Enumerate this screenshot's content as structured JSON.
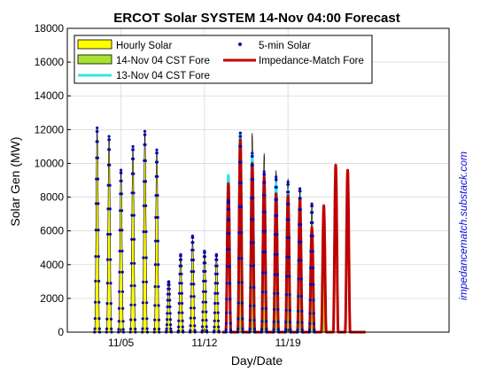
{
  "chart_data": {
    "type": "area",
    "title": "ERCOT Solar SYSTEM  14-Nov 04:00 Forecast",
    "xlabel": "Day/Date",
    "ylabel": "Solar Gen (MW)",
    "watermark": "impedancematch.substack.com",
    "ylim": [
      0,
      18000
    ],
    "xlim": [
      0,
      32
    ],
    "yticks": [
      0,
      2000,
      4000,
      6000,
      8000,
      10000,
      12000,
      14000,
      16000,
      18000
    ],
    "xticks": [
      {
        "day": 4.5,
        "label": "11/05"
      },
      {
        "day": 11.5,
        "label": "11/12"
      },
      {
        "day": 18.5,
        "label": "11/19"
      }
    ],
    "grid": true,
    "legend_placement": "top",
    "series": [
      {
        "name": "Hourly Solar",
        "style": "yellow-fill",
        "color": "#ffff00",
        "days": [
          2,
          3,
          4,
          5,
          6,
          7,
          8,
          9,
          10,
          11,
          12,
          13
        ],
        "peaks": [
          12100,
          11600,
          9600,
          11000,
          11900,
          10800,
          3000,
          4600,
          5500,
          4800,
          4600,
          0
        ]
      },
      {
        "name": "5-min Solar",
        "style": "dots",
        "color": "#0a0aaa",
        "days": [
          2,
          3,
          4,
          5,
          6,
          7,
          8,
          9,
          10,
          11,
          12,
          13,
          14,
          15,
          16,
          17,
          18,
          19,
          20,
          21
        ],
        "peaks": [
          12100,
          11600,
          9600,
          11000,
          11900,
          10800,
          3000,
          4600,
          5700,
          4800,
          4600,
          7800,
          11800,
          10600,
          9500,
          9200,
          8900,
          8500,
          7600,
          0
        ]
      },
      {
        "name": "14-Nov 04 CST Fore",
        "style": "green-fill",
        "color": "#a6e22e",
        "days": [
          14,
          15,
          16,
          17,
          18,
          19,
          20,
          21
        ],
        "peaks": [
          7700,
          11800,
          10600,
          9600,
          9100,
          8500,
          7600,
          6200
        ]
      },
      {
        "name": "13-Nov 04 CST Fore",
        "style": "cyan-line",
        "color": "#33e6e6",
        "days": [
          13,
          14,
          15,
          16,
          17,
          18,
          19,
          20
        ],
        "peaks": [
          9300,
          11800,
          10600,
          9200,
          8800,
          8400,
          7000,
          6100
        ]
      },
      {
        "name": "Impedance-Match Fore",
        "style": "red-line",
        "color": "#c00000",
        "days": [
          13,
          14,
          15,
          16,
          17,
          18,
          19,
          20,
          21,
          22,
          23,
          24
        ],
        "peaks": [
          8800,
          11400,
          10000,
          9200,
          8200,
          8100,
          7900,
          6200,
          7500,
          9900,
          9600,
          0
        ]
      }
    ]
  }
}
